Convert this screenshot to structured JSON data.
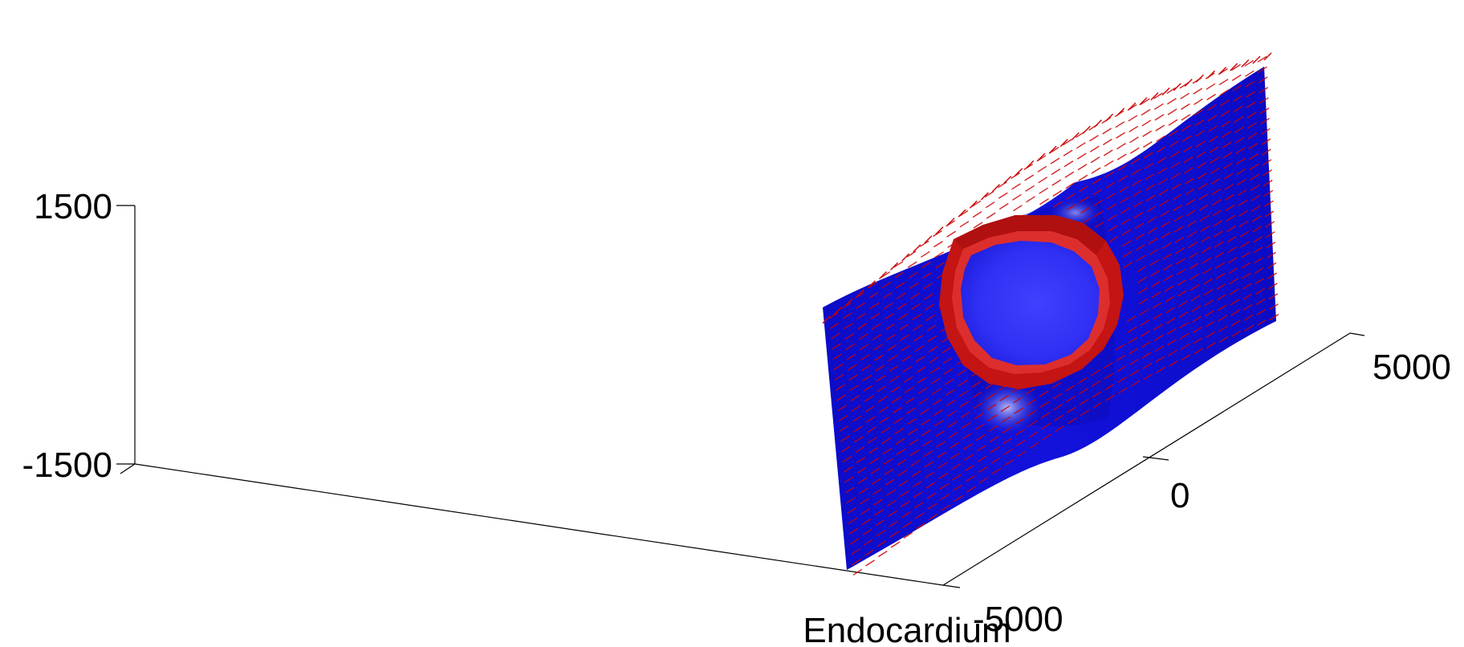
{
  "chart_data": {
    "type": "surface",
    "title": "",
    "xlabel": "Endocardium",
    "ylabel": "",
    "zlabel": "",
    "x_ticks": [],
    "y_ticks": [
      "-5000",
      "0",
      "5000"
    ],
    "z_ticks": [
      "-1500",
      "1500"
    ],
    "ylim": [
      -5000,
      5000
    ],
    "zlim": [
      -1500,
      1500
    ],
    "grid": false,
    "colors": {
      "surface": "#0a0ad2",
      "pit": "#3232ff",
      "ring": "#cc1010",
      "vectors": "#cc0000",
      "axes": "#000000",
      "background": "#ffffff"
    },
    "elements": [
      {
        "name": "surface",
        "description_text": ""
      },
      {
        "name": "ring",
        "description_text": ""
      },
      {
        "name": "vector-field",
        "description_text": ""
      }
    ]
  }
}
